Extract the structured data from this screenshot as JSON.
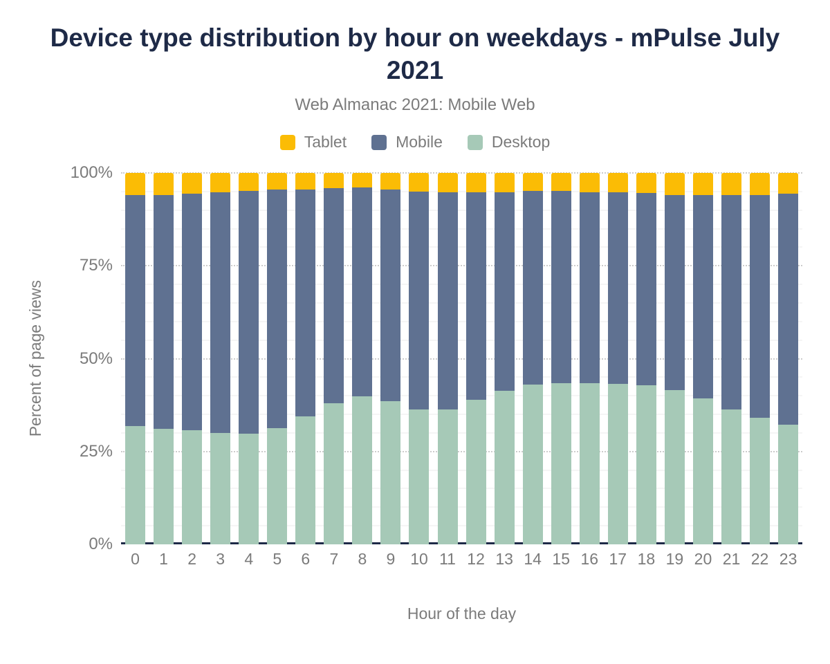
{
  "chart_data": {
    "type": "bar",
    "stacked": true,
    "stacking": "percent",
    "title": "Device type distribution by hour on weekdays - mPulse July 2021",
    "subtitle": "Web Almanac 2021: Mobile Web",
    "xlabel": "Hour of the day",
    "ylabel": "Percent of page views",
    "ylim": [
      0,
      100
    ],
    "y_ticks": [
      0,
      25,
      50,
      75,
      100
    ],
    "y_tick_suffix": "%",
    "minor_grid_step": 5,
    "grid": "on",
    "legend_position": "top",
    "axis_line_color": "#1E2A47",
    "categories": [
      "0",
      "1",
      "2",
      "3",
      "4",
      "5",
      "6",
      "7",
      "8",
      "9",
      "10",
      "11",
      "12",
      "13",
      "14",
      "15",
      "16",
      "17",
      "18",
      "19",
      "20",
      "21",
      "22",
      "23"
    ],
    "series": [
      {
        "name": "Tablet",
        "color": "#FBBC05",
        "values": [
          5.9,
          6.0,
          5.6,
          5.2,
          4.8,
          4.5,
          4.5,
          4.1,
          3.9,
          4.5,
          5.0,
          5.2,
          5.2,
          5.2,
          4.8,
          4.8,
          5.2,
          5.2,
          5.4,
          5.9,
          6.0,
          6.0,
          6.0,
          5.5
        ]
      },
      {
        "name": "Mobile",
        "color": "#5F7191",
        "values": [
          62.3,
          62.9,
          63.7,
          64.9,
          65.4,
          64.3,
          61.0,
          58.0,
          56.3,
          56.9,
          58.7,
          58.5,
          55.9,
          53.4,
          52.1,
          51.8,
          51.4,
          51.6,
          51.8,
          52.6,
          54.7,
          57.6,
          59.9,
          62.3
        ]
      },
      {
        "name": "Desktop",
        "color": "#A6C9B7",
        "values": [
          31.8,
          31.1,
          30.7,
          29.9,
          29.8,
          31.2,
          34.5,
          37.9,
          39.8,
          38.6,
          36.3,
          36.3,
          38.9,
          41.4,
          43.1,
          43.4,
          43.4,
          43.2,
          42.8,
          41.5,
          39.3,
          36.4,
          34.1,
          32.2
        ]
      }
    ],
    "stack_order_bottom_to_top": [
      "Desktop",
      "Mobile",
      "Tablet"
    ],
    "text_color": "#7B7B7B",
    "title_color": "#1E2A47"
  }
}
